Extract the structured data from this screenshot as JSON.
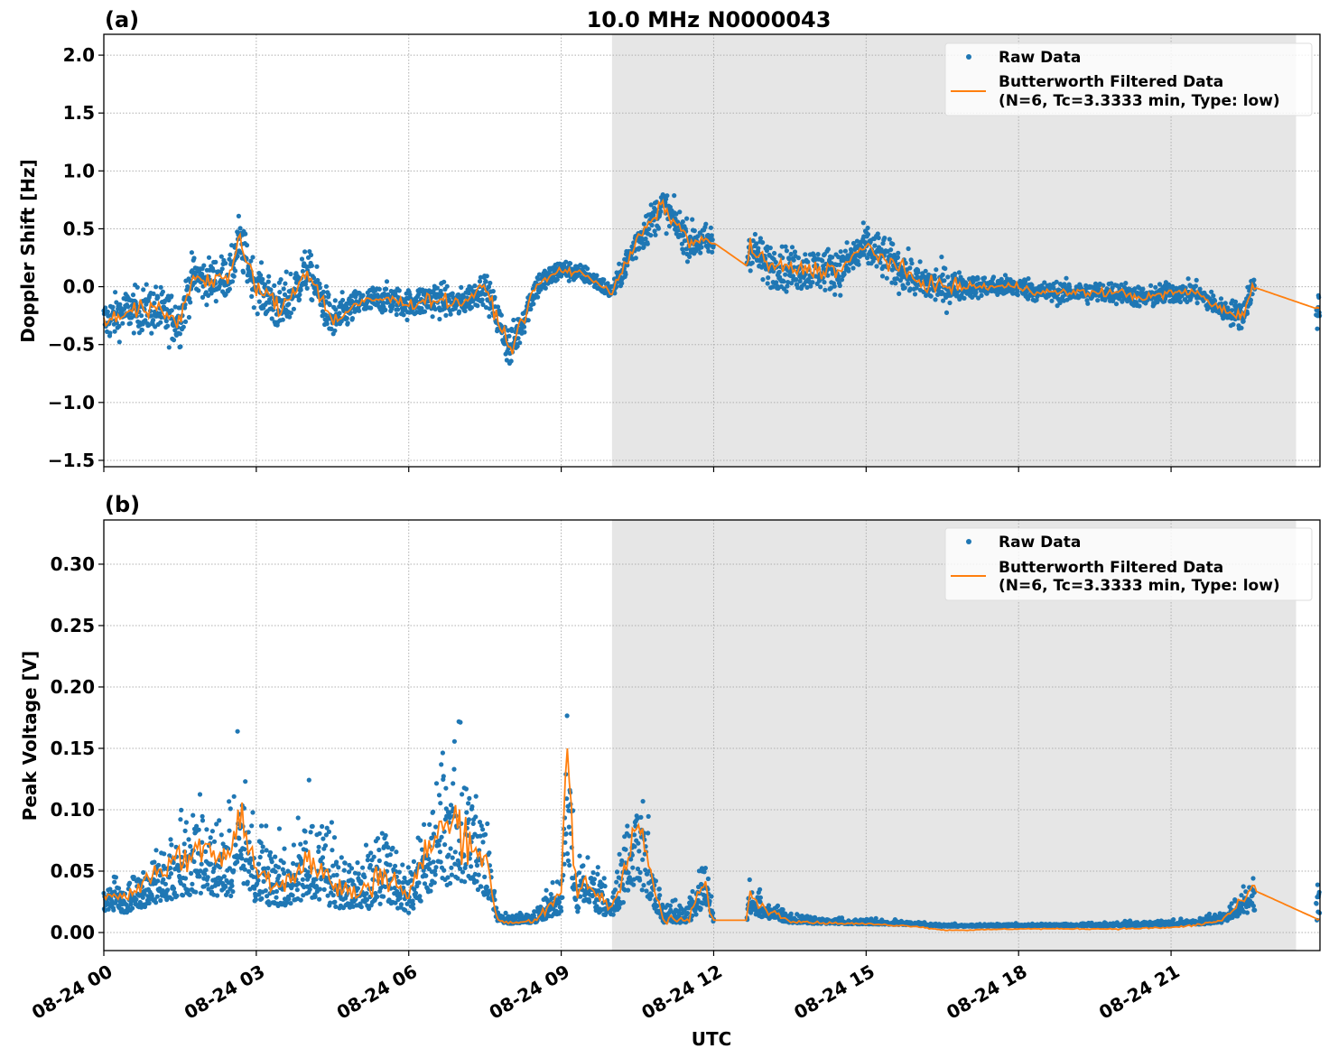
{
  "chart_data": [
    {
      "type": "scatter",
      "panel_label": "(a)",
      "title": "10.0 MHz N0000043",
      "ylabel": "Doppler Shift [Hz]",
      "xlabel": "",
      "xlim_hours": [
        0,
        23.93
      ],
      "ylim": [
        -1.555,
        2.18
      ],
      "yticks": [
        "2.0",
        "1.5",
        "1.0",
        "0.5",
        "0.0",
        "−0.5",
        "−1.0",
        "−1.5"
      ],
      "ytick_values": [
        2.0,
        1.5,
        1.0,
        0.5,
        0.0,
        -0.5,
        -1.0,
        -1.5
      ],
      "grid": true,
      "legend": {
        "placement": "top-right",
        "entries": [
          "Raw Data",
          "Butterworth Filtered Data\n(N=6, Tc=3.3333 min, Type: low)"
        ],
        "line1": "Butterworth Filtered Data",
        "line2": "(N=6, Tc=3.3333 min, Type: low)"
      },
      "shaded_span_hours": [
        10.0,
        23.46
      ],
      "raw_gaps_hours": [
        [
          12.0,
          12.65
        ],
        [
          22.65,
          23.85
        ]
      ],
      "filtered": {
        "hours": [
          0,
          0.5,
          1,
          1.5,
          1.75,
          2,
          2.5,
          2.65,
          3,
          3.5,
          4,
          4.5,
          5,
          5.5,
          6,
          6.5,
          7,
          7.5,
          8,
          8.5,
          9,
          9.5,
          10,
          10.5,
          11,
          11.5,
          12,
          12.65,
          12.7,
          13,
          13.5,
          14,
          14.5,
          15,
          15.5,
          16,
          16.5,
          17,
          17.5,
          18,
          18.5,
          19,
          20,
          20.5,
          21,
          21.5,
          22,
          22.4,
          22.6,
          23.93
        ],
        "values": [
          -0.3,
          -0.2,
          -0.2,
          -0.3,
          0.1,
          0.05,
          0.1,
          0.4,
          0.0,
          -0.2,
          0.15,
          -0.3,
          -0.15,
          -0.1,
          -0.15,
          -0.1,
          -0.15,
          0.0,
          -0.55,
          0.0,
          0.15,
          0.1,
          -0.05,
          0.4,
          0.7,
          0.4,
          0.38,
          0.18,
          0.35,
          0.2,
          0.15,
          0.15,
          0.15,
          0.35,
          0.2,
          0.05,
          0.0,
          0.0,
          0.0,
          0.0,
          -0.05,
          -0.05,
          -0.05,
          -0.1,
          -0.05,
          -0.05,
          -0.2,
          -0.25,
          0.0,
          -0.2
        ],
        "spread": [
          0.3,
          0.3,
          0.35,
          0.35,
          0.3,
          0.3,
          0.3,
          0.35,
          0.3,
          0.4,
          0.3,
          0.3,
          0.2,
          0.2,
          0.2,
          0.25,
          0.2,
          0.2,
          0.3,
          0.2,
          0.15,
          0.12,
          0.12,
          0.25,
          0.25,
          0.25,
          0.25,
          0.25,
          0.3,
          0.3,
          0.3,
          0.3,
          0.3,
          0.3,
          0.3,
          0.25,
          0.3,
          0.15,
          0.15,
          0.15,
          0.15,
          0.15,
          0.15,
          0.15,
          0.15,
          0.15,
          0.15,
          0.2,
          0.2,
          0.3
        ]
      },
      "series_colors": {
        "raw": "#1f77b4",
        "filtered": "#ff7f0e"
      }
    },
    {
      "type": "scatter",
      "panel_label": "(b)",
      "title": "",
      "ylabel": "Peak Voltage [V]",
      "xlabel": "UTC",
      "xlim_hours": [
        0,
        23.93
      ],
      "ylim": [
        -0.0147,
        0.336
      ],
      "yticks": [
        "0.30",
        "0.25",
        "0.20",
        "0.15",
        "0.10",
        "0.05",
        "0.00"
      ],
      "ytick_values": [
        0.3,
        0.25,
        0.2,
        0.15,
        0.1,
        0.05,
        0.0
      ],
      "xticks": [
        "08-24 00",
        "08-24 03",
        "08-24 06",
        "08-24 09",
        "08-24 12",
        "08-24 15",
        "08-24 18",
        "08-24 21"
      ],
      "xtick_hours": [
        0,
        3,
        6,
        9,
        12,
        15,
        18,
        21
      ],
      "grid": true,
      "legend": {
        "placement": "top-right",
        "line0": "Raw Data",
        "line1": "Butterworth Filtered Data",
        "line2": "(N=6, Tc=3.3333 min, Type: low)"
      },
      "shaded_span_hours": [
        10.0,
        23.46
      ],
      "raw_gaps_hours": [
        [
          12.0,
          12.65
        ],
        [
          22.65,
          23.85
        ]
      ],
      "filtered": {
        "hours": [
          0,
          0.5,
          1,
          1.5,
          2,
          2.5,
          2.65,
          3,
          3.5,
          4,
          4.5,
          5,
          5.5,
          6,
          6.5,
          7,
          7.5,
          7.75,
          8,
          8.5,
          9,
          9.1,
          9.3,
          9.5,
          10,
          10.5,
          11,
          11.5,
          11.8,
          12,
          12.65,
          12.7,
          13,
          13.5,
          14,
          15,
          16,
          16.5,
          17,
          18,
          19,
          20,
          21,
          21.5,
          22,
          22.4,
          22.6,
          23.93
        ],
        "values": [
          0.03,
          0.03,
          0.05,
          0.06,
          0.07,
          0.06,
          0.1,
          0.05,
          0.04,
          0.06,
          0.04,
          0.03,
          0.05,
          0.03,
          0.08,
          0.09,
          0.06,
          0.01,
          0.008,
          0.01,
          0.03,
          0.16,
          0.03,
          0.04,
          0.02,
          0.09,
          0.01,
          0.01,
          0.04,
          0.01,
          0.01,
          0.03,
          0.02,
          0.01,
          0.008,
          0.007,
          0.005,
          0.002,
          0.002,
          0.003,
          0.003,
          0.003,
          0.004,
          0.006,
          0.01,
          0.025,
          0.035,
          0.01
        ],
        "spread": [
          0.02,
          0.03,
          0.05,
          0.07,
          0.07,
          0.08,
          0.1,
          0.06,
          0.06,
          0.08,
          0.06,
          0.04,
          0.07,
          0.04,
          0.09,
          0.12,
          0.08,
          0.01,
          0.006,
          0.012,
          0.03,
          0.15,
          0.04,
          0.05,
          0.02,
          0.09,
          0.02,
          0.015,
          0.05,
          0.01,
          0.01,
          0.03,
          0.02,
          0.008,
          0.005,
          0.004,
          0.003,
          0.002,
          0.002,
          0.002,
          0.002,
          0.003,
          0.004,
          0.005,
          0.01,
          0.02,
          0.025,
          0.03
        ]
      },
      "series_colors": {
        "raw": "#1f77b4",
        "filtered": "#ff7f0e"
      }
    }
  ]
}
